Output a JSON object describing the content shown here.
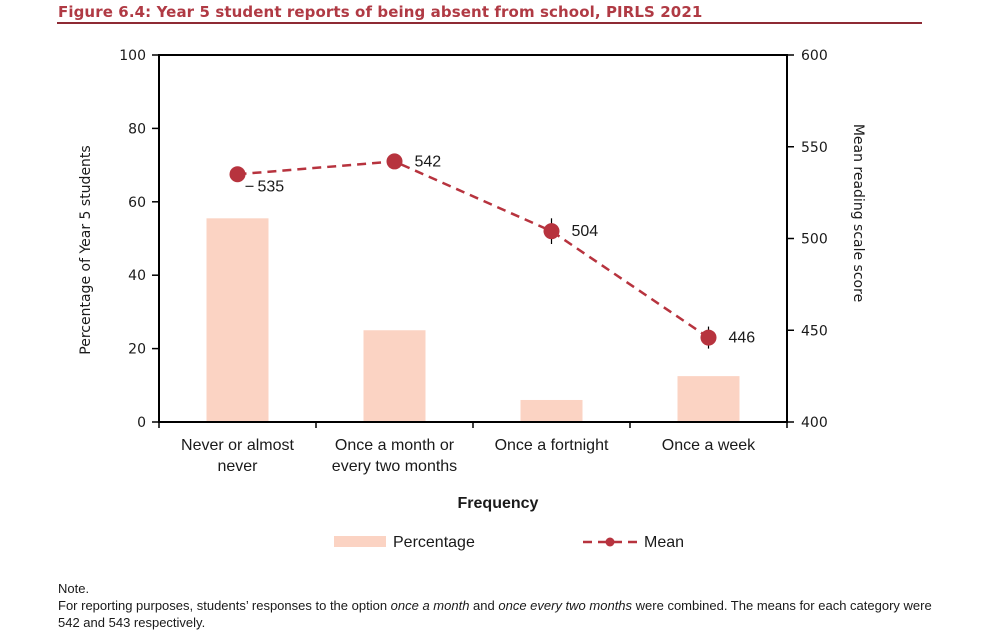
{
  "figure": {
    "title": "Figure 6.4:  Year 5 student reports of being absent from school, PIRLS 2021"
  },
  "chart_data": {
    "type": "bar",
    "categories": [
      [
        "Never or almost",
        "never"
      ],
      [
        "Once a month or",
        "every two months"
      ],
      [
        "Once a fortnight"
      ],
      [
        "Once a week"
      ]
    ],
    "xlabel": "Frequency",
    "ylabel": "Percentage of Year 5 students",
    "ylabel_right": "Mean reading scale score",
    "ylim": [
      0,
      100
    ],
    "yticks": [
      0,
      20,
      40,
      60,
      80,
      100
    ],
    "ylim_right": [
      400,
      600
    ],
    "yticks_right": [
      400,
      450,
      500,
      550,
      600
    ],
    "series": [
      {
        "name": "Percentage",
        "type": "bar",
        "axis": "left",
        "color": "#fbd3c3",
        "values": [
          55.5,
          25,
          6,
          12.5
        ]
      },
      {
        "name": "Mean",
        "type": "line",
        "axis": "right",
        "color": "#b7333e",
        "dashed": true,
        "values": [
          535,
          542,
          504,
          446
        ],
        "labels": [
          "535",
          "542",
          "504",
          "446"
        ],
        "error": [
          3,
          4,
          7,
          6
        ]
      }
    ],
    "legend": {
      "position": "bottom",
      "entries": [
        "Percentage",
        "Mean"
      ]
    },
    "grid": false
  },
  "note": {
    "heading": "Note.",
    "text_before_1": "For reporting purposes, students’ responses to the option ",
    "em_1": "once a month",
    "text_between": " and ",
    "em_2": "once every two months",
    "text_after": " were combined.  The means for each category were 542 and 543 respectively."
  }
}
